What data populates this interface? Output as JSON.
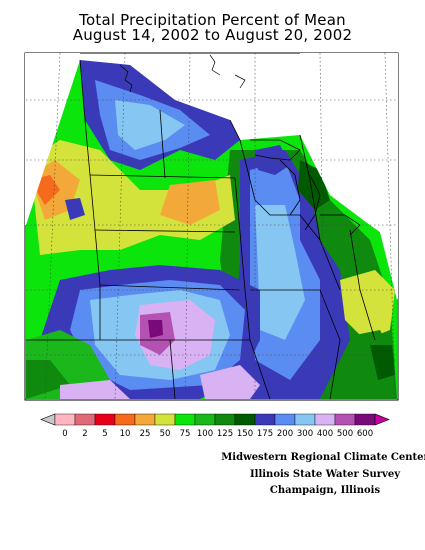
{
  "title": {
    "line1": "Total Precipitation Percent of Mean",
    "line2": "August 14, 2002 to August 20, 2002"
  },
  "legend": {
    "labels": [
      "0",
      "2",
      "5",
      "10",
      "25",
      "50",
      "75",
      "100",
      "125",
      "150",
      "175",
      "200",
      "300",
      "400",
      "500",
      "600"
    ],
    "colors": [
      "#ffb6c1",
      "#e06a78",
      "#e8001a",
      "#f56a1c",
      "#f2a93a",
      "#d4e33c",
      "#0be50b",
      "#1bb81b",
      "#0f8a0f",
      "#005a00",
      "#3a3ab8",
      "#5a8cf2",
      "#86c6f2",
      "#d8b2f2",
      "#b452b4",
      "#7a0a7a"
    ],
    "under_color": "#c8c8c8",
    "over_color": "#c800a0"
  },
  "credits": {
    "line1": "Midwestern Regional Climate Center",
    "line2": "Illinois State Water Survey",
    "line3": "Champaign, Illinois"
  }
}
